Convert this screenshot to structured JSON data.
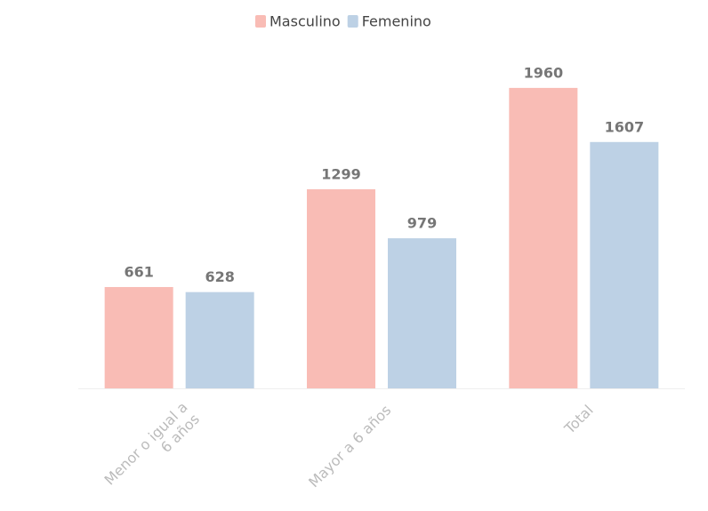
{
  "chart_data": {
    "type": "bar",
    "categories": [
      "Menor o igual a 6 años",
      "Mayor a 6 años",
      "Total"
    ],
    "series": [
      {
        "name": "Masculino",
        "color": "#f9bcb5",
        "values": [
          661,
          1299,
          1960
        ]
      },
      {
        "name": "Femenino",
        "color": "#bdd1e5",
        "values": [
          628,
          979,
          1607
        ]
      }
    ],
    "ylim": [
      0,
      2000
    ],
    "legend": "top"
  }
}
